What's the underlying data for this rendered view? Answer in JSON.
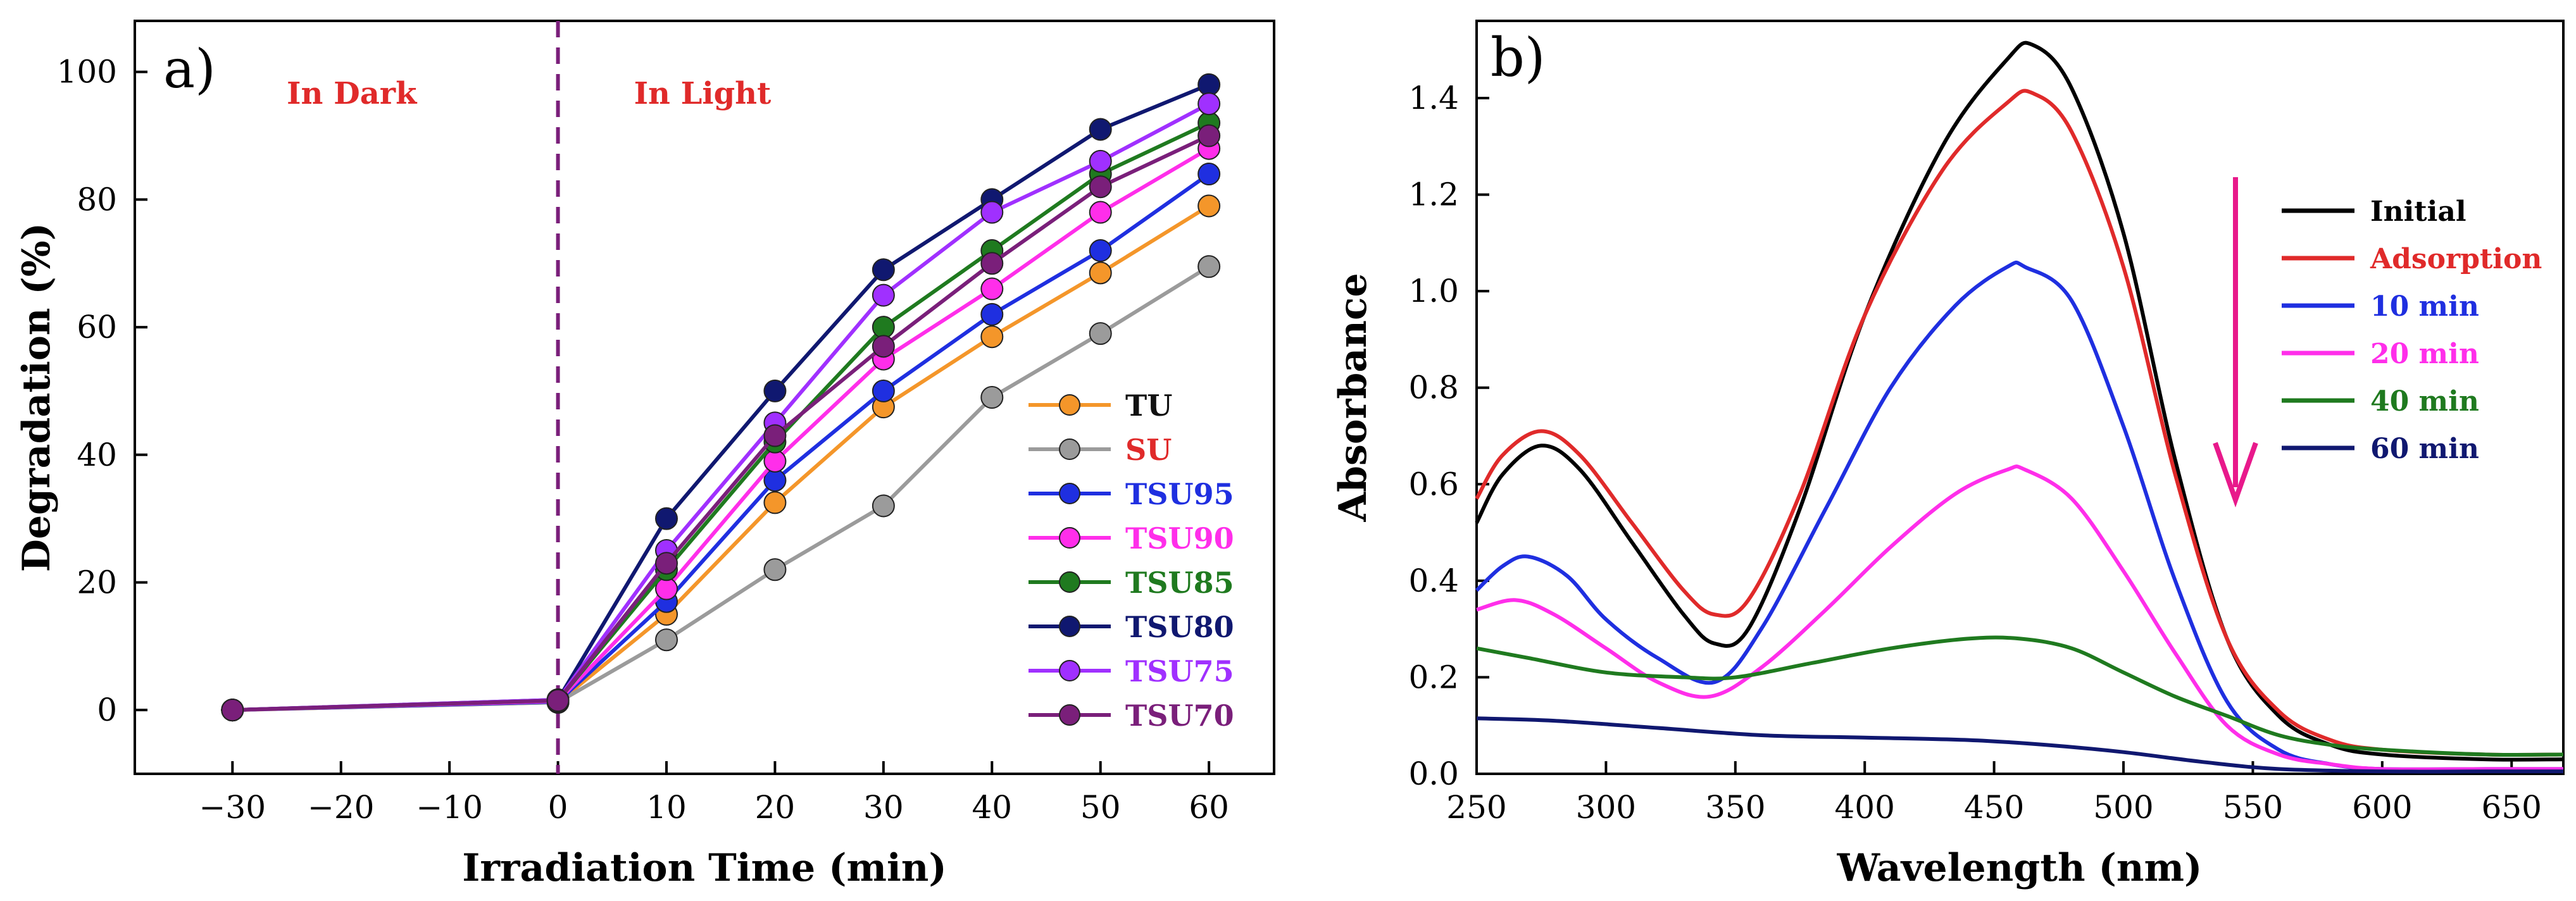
{
  "chart_data": [
    {
      "type": "line",
      "panel_label": "a)",
      "xlabel": "Irradiation Time (min)",
      "ylabel": "Degradation (%)",
      "xlim": [
        -39,
        66
      ],
      "ylim": [
        -10,
        108
      ],
      "x_ticks": [
        -30,
        -20,
        -10,
        0,
        10,
        20,
        30,
        40,
        50,
        60
      ],
      "x_tick_labels": [
        "−30",
        "−20",
        "−10",
        "0",
        "10",
        "20",
        "30",
        "40",
        "50",
        "60"
      ],
      "y_ticks": [
        0,
        20,
        40,
        60,
        80,
        100
      ],
      "y_tick_labels": [
        "0",
        "20",
        "40",
        "60",
        "80",
        "100"
      ],
      "annotations": [
        {
          "text": "In Dark",
          "x": -25,
          "y": 97,
          "color": "#e02a2a"
        },
        {
          "text": "In Light",
          "x": 7,
          "y": 97,
          "color": "#e02a2a"
        }
      ],
      "divider_x": 0,
      "x": [
        -30,
        0,
        10,
        20,
        30,
        40,
        50,
        60
      ],
      "series": [
        {
          "name": "TU",
          "color": "#f4962a",
          "label_color": "#111111",
          "values": [
            0,
            1.2,
            15,
            32.5,
            47.5,
            58.5,
            68.5,
            79
          ]
        },
        {
          "name": "SU",
          "color": "#9b9b9b",
          "label_color": "#e02a2a",
          "values": [
            0,
            1.2,
            11,
            22,
            32,
            49,
            59,
            69.5
          ]
        },
        {
          "name": "TSU95",
          "color": "#1f2fe0",
          "label_color": "#1f2fe0",
          "values": [
            0,
            1.3,
            17,
            36,
            50,
            62,
            72,
            84
          ]
        },
        {
          "name": "TSU90",
          "color": "#ff2eea",
          "label_color": "#ff2eea",
          "values": [
            0,
            1.4,
            19,
            39,
            55,
            66,
            78,
            88
          ]
        },
        {
          "name": "TSU85",
          "color": "#1f7a1f",
          "label_color": "#1f7a1f",
          "values": [
            0,
            1.5,
            22,
            42,
            60,
            72,
            84,
            92
          ]
        },
        {
          "name": "TSU80",
          "color": "#101870",
          "label_color": "#101870",
          "values": [
            0,
            1.6,
            30,
            50,
            69,
            80,
            91,
            98
          ]
        },
        {
          "name": "TSU75",
          "color": "#a030ff",
          "label_color": "#a030ff",
          "values": [
            0,
            1.6,
            25,
            45,
            65,
            78,
            86,
            95
          ]
        },
        {
          "name": "TSU70",
          "color": "#7a1f7a",
          "label_color": "#7a1f7a",
          "values": [
            0,
            1.5,
            23,
            43,
            57,
            70,
            82,
            90
          ]
        }
      ]
    },
    {
      "type": "line",
      "panel_label": "b)",
      "xlabel": "Wavelength (nm)",
      "ylabel": "Absorbance",
      "xlim": [
        250,
        670
      ],
      "ylim": [
        0,
        1.56
      ],
      "x_ticks": [
        250,
        300,
        350,
        400,
        450,
        500,
        550,
        600,
        650
      ],
      "x_tick_labels": [
        "250",
        "300",
        "350",
        "400",
        "450",
        "500",
        "550",
        "600",
        "650"
      ],
      "y_ticks": [
        0,
        0.2,
        0.4,
        0.6,
        0.8,
        1.0,
        1.2,
        1.4
      ],
      "y_tick_labels": [
        "0.0",
        "0.2",
        "0.4",
        "0.6",
        "0.8",
        "1.0",
        "1.2",
        "1.4"
      ],
      "arrow_color": "#e8198b",
      "series": [
        {
          "name": "Initial",
          "color": "#000000",
          "x": [
            250,
            260,
            275,
            290,
            310,
            330,
            342,
            355,
            375,
            400,
            430,
            455,
            465,
            480,
            500,
            520,
            540,
            560,
            580,
            600,
            640,
            670
          ],
          "values": [
            0.52,
            0.62,
            0.68,
            0.63,
            0.48,
            0.33,
            0.27,
            0.3,
            0.55,
            0.95,
            1.3,
            1.48,
            1.51,
            1.42,
            1.12,
            0.65,
            0.28,
            0.12,
            0.06,
            0.04,
            0.03,
            0.03
          ]
        },
        {
          "name": "Adsorption",
          "color": "#e02a2a",
          "x": [
            250,
            260,
            275,
            290,
            310,
            330,
            342,
            355,
            375,
            400,
            430,
            455,
            465,
            480,
            500,
            520,
            540,
            560,
            580,
            600,
            640,
            670
          ],
          "values": [
            0.57,
            0.66,
            0.71,
            0.66,
            0.52,
            0.38,
            0.33,
            0.36,
            0.58,
            0.95,
            1.25,
            1.39,
            1.41,
            1.33,
            1.05,
            0.62,
            0.28,
            0.13,
            0.07,
            0.05,
            0.04,
            0.04
          ]
        },
        {
          "name": "10 min",
          "color": "#1f2fe0",
          "x": [
            250,
            260,
            270,
            285,
            300,
            320,
            342,
            360,
            385,
            410,
            435,
            455,
            462,
            480,
            500,
            520,
            540,
            560,
            580,
            600,
            640,
            670
          ],
          "values": [
            0.38,
            0.43,
            0.45,
            0.41,
            0.32,
            0.24,
            0.19,
            0.3,
            0.55,
            0.8,
            0.97,
            1.05,
            1.05,
            0.98,
            0.72,
            0.4,
            0.15,
            0.05,
            0.02,
            0.01,
            0.01,
            0.01
          ]
        },
        {
          "name": "20 min",
          "color": "#ff2eea",
          "x": [
            250,
            265,
            280,
            300,
            320,
            340,
            360,
            385,
            410,
            435,
            455,
            462,
            480,
            500,
            520,
            540,
            560,
            580,
            600,
            640,
            670
          ],
          "values": [
            0.34,
            0.36,
            0.33,
            0.26,
            0.19,
            0.16,
            0.22,
            0.34,
            0.47,
            0.58,
            0.63,
            0.63,
            0.57,
            0.42,
            0.25,
            0.1,
            0.04,
            0.02,
            0.01,
            0.01,
            0.01
          ]
        },
        {
          "name": "40 min",
          "color": "#1f7a1f",
          "x": [
            250,
            270,
            300,
            330,
            350,
            380,
            410,
            440,
            460,
            480,
            500,
            520,
            540,
            560,
            580,
            600,
            640,
            670
          ],
          "values": [
            0.26,
            0.24,
            0.21,
            0.2,
            0.2,
            0.23,
            0.26,
            0.28,
            0.28,
            0.26,
            0.21,
            0.16,
            0.12,
            0.08,
            0.06,
            0.05,
            0.04,
            0.04
          ]
        },
        {
          "name": "60 min",
          "color": "#101870",
          "x": [
            250,
            280,
            320,
            360,
            400,
            440,
            470,
            500,
            530,
            560,
            600,
            640,
            670
          ],
          "values": [
            0.115,
            0.11,
            0.095,
            0.08,
            0.075,
            0.07,
            0.06,
            0.045,
            0.025,
            0.01,
            0.005,
            0.005,
            0.005
          ]
        }
      ]
    }
  ]
}
